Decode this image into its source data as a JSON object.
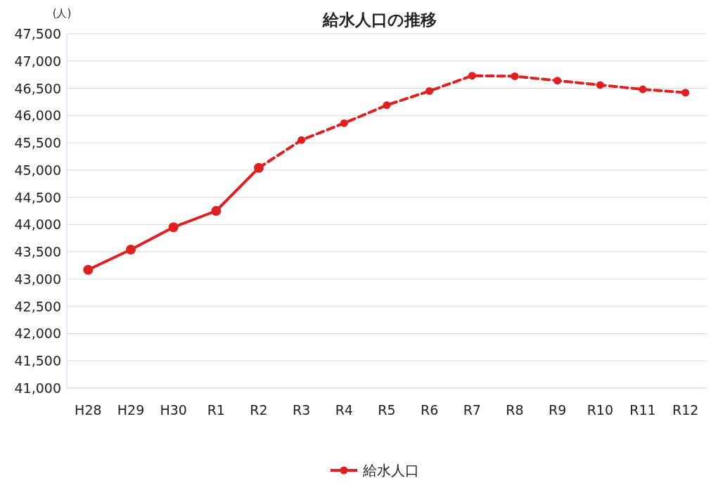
{
  "chart_data": {
    "type": "line",
    "title": "給水人口の推移",
    "ylabel": "(人)",
    "categories": [
      "H28",
      "H29",
      "H30",
      "R1",
      "R2",
      "R3",
      "R4",
      "R5",
      "R6",
      "R7",
      "R8",
      "R9",
      "R10",
      "R11",
      "R12"
    ],
    "series": [
      {
        "name": "給水人口",
        "color": "#e02020",
        "line_style": "solid",
        "values": [
          43170,
          43540,
          43950,
          44250,
          45040,
          null,
          null,
          null,
          null,
          null,
          null,
          null,
          null,
          null,
          null
        ]
      },
      {
        "color": "#e02020",
        "line_style": "dashed",
        "values": [
          null,
          null,
          null,
          null,
          45040,
          45550,
          45860,
          46190,
          46450,
          46730,
          46720,
          46640,
          46560,
          46480,
          46420
        ]
      }
    ],
    "ylim": [
      41000,
      47500
    ],
    "yticks": [
      {
        "value": 41000,
        "label": "41,000"
      },
      {
        "value": 41500,
        "label": "41,500"
      },
      {
        "value": 42000,
        "label": "42,000"
      },
      {
        "value": 42500,
        "label": "42,500"
      },
      {
        "value": 43000,
        "label": "43,000"
      },
      {
        "value": 43500,
        "label": "43,500"
      },
      {
        "value": 44000,
        "label": "44,000"
      },
      {
        "value": 44500,
        "label": "44,500"
      },
      {
        "value": 45000,
        "label": "45,000"
      },
      {
        "value": 45500,
        "label": "45,500"
      },
      {
        "value": 46000,
        "label": "46,000"
      },
      {
        "value": 46500,
        "label": "46,500"
      },
      {
        "value": 47000,
        "label": "47,000"
      },
      {
        "value": 47500,
        "label": "47,500"
      }
    ],
    "grid": "y",
    "legend": "bottom",
    "marker": "circle"
  }
}
